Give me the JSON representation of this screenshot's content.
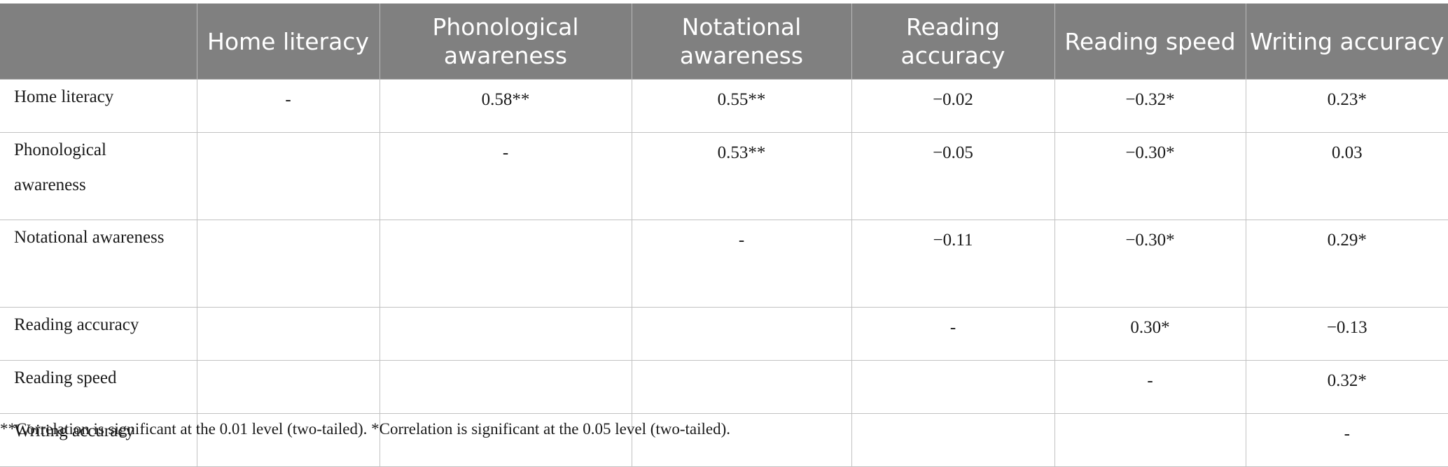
{
  "table": {
    "columns": [
      "",
      "Home literacy",
      "Phonological awareness",
      "Notational awareness",
      "Reading accuracy",
      "Reading speed",
      "Writing accuracy"
    ],
    "rows": [
      {
        "label": "Home literacy",
        "cells": [
          "-",
          "0.58**",
          "0.55**",
          "−0.02",
          "−0.32*",
          "0.23*"
        ]
      },
      {
        "label": "Phonological awareness",
        "cells": [
          "",
          "-",
          "0.53**",
          "−0.05",
          "−0.30*",
          "0.03"
        ]
      },
      {
        "label": "Notational awareness",
        "cells": [
          "",
          "",
          "-",
          "−0.11",
          "−0.30*",
          "0.29*"
        ]
      },
      {
        "label": "Reading accuracy",
        "cells": [
          "",
          "",
          "",
          "-",
          "0.30*",
          "−0.13"
        ]
      },
      {
        "label": "Reading speed",
        "cells": [
          "",
          "",
          "",
          "",
          "-",
          "0.32*"
        ]
      },
      {
        "label": "Writing accuracy",
        "cells": [
          "",
          "",
          "",
          "",
          "",
          "-"
        ]
      }
    ]
  },
  "footnote": "**Correlation is significant at the 0.01 level (two-tailed). *Correlation is significant at the 0.05 level (two-tailed).",
  "colors": {
    "header_bg": "#808080",
    "header_text": "#ffffff",
    "grid": "#c2c2c2"
  }
}
